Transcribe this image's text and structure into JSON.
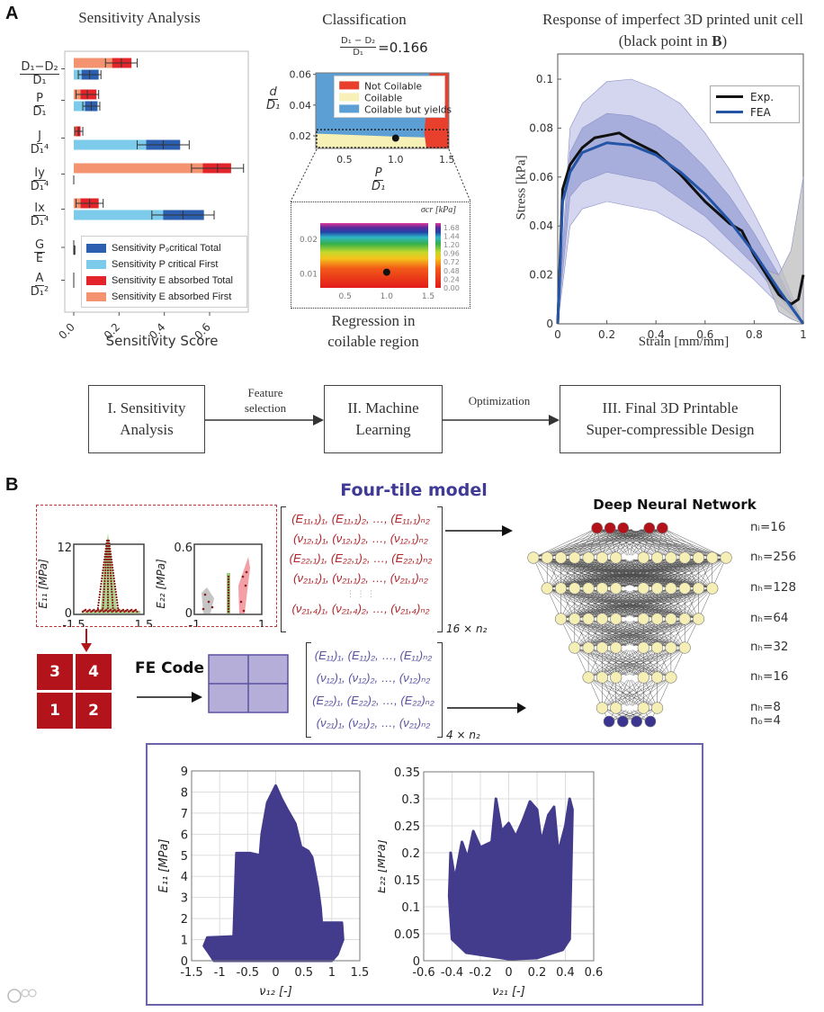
{
  "colors": {
    "p_total": "#2c5faf",
    "p_first": "#7dcbea",
    "e_total": "#e3242b",
    "e_first": "#f3936f",
    "dnn_input": "#b3121a",
    "dnn_hidden": "#f6efb5",
    "dnn_output": "#3b3591",
    "scatter": "#433b8c",
    "tile_red": "#b3141c",
    "tile_purple": "#b4aed8",
    "matrix_red": "#b0242a",
    "matrix_purple": "#5a52a0",
    "accent_title": "#3f3a96"
  },
  "panel_a": {
    "letter": "A"
  },
  "panel_b": {
    "letter": "B"
  },
  "sensitivity": {
    "title": "Sensitivity Analysis",
    "xlabel": "Sensitivity Score",
    "legend": [
      "Sensitivity P₉critical Total",
      "Sensitivity P critical First",
      "Sensitivity E absorbed Total",
      "Sensitivity E absorbed First"
    ]
  },
  "classification": {
    "title": "Classification",
    "formula_num": "D₁ − D₂",
    "formula_den": "D₁",
    "formula_value": "=0.166",
    "ylabel_num": "d",
    "ylabel_den": "D₁",
    "xlabel_num": "P",
    "xlabel_den": "D₁",
    "regression_caption_1": "Regression in",
    "regression_caption_2": "coilable region",
    "colorbar_label": "σcr [kPa]"
  },
  "response": {
    "title_1": "Response of imperfect 3D printed unit cell",
    "title_2": "(black point in ",
    "title_bold": "B",
    "title_3": ")",
    "xlabel": "Strain [mm/mm]",
    "ylabel": "Stress [kPa]",
    "legend": [
      "Exp.",
      "FEA"
    ]
  },
  "flow": {
    "box1": [
      "I. Sensitivity",
      "Analysis"
    ],
    "box2": [
      "II. Machine",
      "Learning"
    ],
    "box3": [
      "III. Final 3D Printable",
      "Super-compressible Design"
    ],
    "note1": [
      "Feature",
      "selection"
    ],
    "note2": "Optimization"
  },
  "four_tile": {
    "title": "Four-tile model",
    "fe_code": "FE Code",
    "tiles": [
      "3",
      "4",
      "1",
      "2"
    ],
    "red_matrix": [
      "(E₁₁,₁)₁, (E₁₁,₁)₂, …, (E₁₁,₁)ₙ₂",
      "(ν₁₂,₁)₁, (ν₁₂,₁)₂, …, (ν₁₂,₁)ₙ₂",
      "(E₂₂,₁)₁, (E₂₂,₁)₂, …, (E₂₂,₁)ₙ₂",
      "(ν₂₁,₁)₁, (ν₂₁,₁)₂, …, (ν₂₁,₁)ₙ₂",
      "⋮            ⋮                  ⋮",
      "(ν₂₁,₄)₁, (ν₂₁,₄)₂, …, (ν₂₁,₄)ₙ₂"
    ],
    "red_size": "16 × n₂",
    "purple_matrix": [
      "(E₁₁)₁, (E₁₁)₂, …, (E₁₁)ₙ₂",
      "(ν₁₂)₁, (ν₁₂)₂, …, (ν₁₂)ₙ₂",
      "(E₂₂)₁, (E₂₂)₂, …, (E₂₂)ₙ₂",
      "(ν₂₁)₁, (ν₂₁)₂, …, (ν₂₁)ₙ₂"
    ],
    "purple_size": "4 × n₂"
  },
  "dnn": {
    "title": "Deep Neural Network",
    "layers": [
      {
        "label": "nᵢ=16",
        "nodes": 6,
        "kind": "input"
      },
      {
        "label": "nₕ=256",
        "nodes": 15,
        "kind": "hidden"
      },
      {
        "label": "nₕ=128",
        "nodes": 13,
        "kind": "hidden"
      },
      {
        "label": "nₕ=64",
        "nodes": 11,
        "kind": "hidden"
      },
      {
        "label": "nₕ=32",
        "nodes": 9,
        "kind": "hidden"
      },
      {
        "label": "nₕ=16",
        "nodes": 7,
        "kind": "hidden"
      },
      {
        "label": "nₕ=8",
        "nodes": 5,
        "kind": "hidden"
      },
      {
        "label": "nₒ=4",
        "nodes": 4,
        "kind": "output"
      }
    ]
  },
  "chart_data": [
    {
      "id": "sensitivity",
      "type": "bar",
      "orientation": "horizontal",
      "title": "Sensitivity Analysis",
      "xlabel": "Sensitivity Score",
      "xlim": [
        -0.03,
        0.78
      ],
      "xticks": [
        "0.0",
        "0.2",
        "0.4",
        "0.6"
      ],
      "xtick_values": [
        0,
        0.2,
        0.4,
        0.6
      ],
      "categories": [
        {
          "num": "D₁−D₂",
          "den": "D₁"
        },
        {
          "num": "P",
          "den": "D₁"
        },
        {
          "num": "J",
          "den": "D₁⁴"
        },
        {
          "num": "Iy",
          "den": "D₁⁴"
        },
        {
          "num": "Ix",
          "den": "D₁⁴"
        },
        {
          "num": "G",
          "den": "E"
        },
        {
          "num": "A",
          "den": "D₁²"
        }
      ],
      "series": [
        {
          "name": "Sensitivity E absorbed First",
          "values": [
            0.17,
            0.03,
            0.01,
            0.57,
            0.03,
            0,
            0
          ]
        },
        {
          "name": "Sensitivity E absorbed Total",
          "values": [
            0.255,
            0.1,
            0.03,
            0.695,
            0.11,
            0,
            0
          ],
          "ci": [
            [
              0.14,
              0.28
            ],
            [
              0.01,
              0.11
            ],
            [
              0.005,
              0.04
            ],
            [
              0.52,
              0.75
            ],
            [
              0.01,
              0.13
            ],
            [
              0,
              0
            ],
            [
              0,
              0
            ]
          ]
        },
        {
          "name": "Sensitivity P critical First",
          "values": [
            0.035,
            0.05,
            0.32,
            0,
            0.395,
            0,
            0
          ]
        },
        {
          "name": "Sensitivity P critical Total",
          "values": [
            0.11,
            0.105,
            0.47,
            0,
            0.575,
            0.005,
            0
          ],
          "ci": [
            [
              0.02,
              0.12
            ],
            [
              0.04,
              0.115
            ],
            [
              0.28,
              0.51
            ],
            [
              0,
              0
            ],
            [
              0.345,
              0.62
            ],
            [
              0,
              0.005
            ],
            [
              0,
              0
            ]
          ]
        }
      ],
      "legend": "lower-right"
    },
    {
      "id": "classification",
      "type": "area",
      "xlim": [
        0.22,
        1.52
      ],
      "ylim": [
        0.0118,
        0.061
      ],
      "xticks": [
        "0.5",
        "1.0",
        "1.5"
      ],
      "xtick_values": [
        0.5,
        1.0,
        1.5
      ],
      "yticks": [
        "0.02",
        "0.04",
        "0.06"
      ],
      "ytick_values": [
        0.02,
        0.04,
        0.06
      ],
      "legend": [
        "Not Coilable",
        "Coilable",
        "Coilable but yields"
      ],
      "region_colors": [
        "#e8402c",
        "#f7f1b8",
        "#5b9fd4"
      ],
      "point": [
        1.0,
        0.0185
      ]
    },
    {
      "id": "regression",
      "type": "heatmap",
      "xlim": [
        0.2,
        1.5
      ],
      "ylim": [
        0.006,
        0.0246
      ],
      "xticks": [
        "0.5",
        "1.0",
        "1.5"
      ],
      "xtick_values": [
        0.5,
        1.0,
        1.5
      ],
      "yticks": [
        "0.01",
        "0.02"
      ],
      "ytick_values": [
        0.01,
        0.02
      ],
      "colorbar_ticks": [
        "0.00",
        "0.24",
        "0.48",
        "0.72",
        "0.96",
        "1.20",
        "1.44",
        "1.68"
      ],
      "colorbar_range": [
        0,
        1.8
      ],
      "point": [
        1.0,
        0.0105
      ]
    },
    {
      "id": "response",
      "type": "line",
      "xlabel": "Strain [mm/mm]",
      "ylabel": "Stress [kPa]",
      "xlim": [
        0,
        1
      ],
      "ylim": [
        0,
        0.11
      ],
      "xticks": [
        "0",
        "0.2",
        "0.4",
        "0.6",
        "0.8",
        "1"
      ],
      "xtick_values": [
        0,
        0.2,
        0.4,
        0.6,
        0.8,
        1
      ],
      "yticks": [
        "0",
        "0.02",
        "0.04",
        "0.06",
        "0.08",
        "0.1"
      ],
      "ytick_values": [
        0,
        0.02,
        0.04,
        0.06,
        0.08,
        0.1
      ],
      "series": [
        {
          "name": "Exp.",
          "color": "#111111",
          "x": [
            0,
            0.02,
            0.05,
            0.1,
            0.15,
            0.2,
            0.25,
            0.3,
            0.4,
            0.5,
            0.6,
            0.7,
            0.75,
            0.8,
            0.85,
            0.9,
            0.95,
            0.98,
            1.0
          ],
          "y": [
            0,
            0.055,
            0.065,
            0.072,
            0.076,
            0.077,
            0.078,
            0.075,
            0.07,
            0.061,
            0.05,
            0.041,
            0.038,
            0.028,
            0.02,
            0.012,
            0.008,
            0.01,
            0.02
          ]
        },
        {
          "name": "FEA",
          "color": "#2454a6",
          "x": [
            0,
            0.02,
            0.05,
            0.1,
            0.2,
            0.3,
            0.4,
            0.5,
            0.6,
            0.7,
            0.8,
            0.9,
            1.0
          ],
          "y": [
            0,
            0.05,
            0.062,
            0.07,
            0.074,
            0.073,
            0.069,
            0.062,
            0.053,
            0.042,
            0.029,
            0.014,
            0
          ]
        }
      ],
      "bands": [
        {
          "name": "FEA outer",
          "upper_x": [
            0,
            0.05,
            0.1,
            0.2,
            0.3,
            0.4,
            0.5,
            0.6,
            0.7,
            0.8,
            0.9,
            1.0
          ],
          "upper_y": [
            0,
            0.08,
            0.09,
            0.099,
            0.1,
            0.096,
            0.09,
            0.078,
            0.063,
            0.045,
            0.025,
            0
          ],
          "lower_x": [
            0,
            0.05,
            0.1,
            0.2,
            0.4,
            0.6,
            0.8,
            0.9,
            1.0
          ],
          "lower_y": [
            0,
            0.04,
            0.047,
            0.05,
            0.046,
            0.035,
            0.018,
            0.008,
            0
          ]
        },
        {
          "name": "FEA inner",
          "upper_x": [
            0,
            0.05,
            0.1,
            0.2,
            0.3,
            0.4,
            0.5,
            0.6,
            0.7,
            0.8,
            0.9,
            1.0
          ],
          "upper_y": [
            0,
            0.07,
            0.08,
            0.086,
            0.085,
            0.081,
            0.074,
            0.064,
            0.052,
            0.037,
            0.02,
            0
          ],
          "lower_x": [
            0,
            0.05,
            0.1,
            0.2,
            0.4,
            0.6,
            0.8,
            0.9,
            1.0
          ],
          "lower_y": [
            0,
            0.052,
            0.058,
            0.062,
            0.058,
            0.044,
            0.024,
            0.011,
            0
          ]
        },
        {
          "name": "Exp. spread",
          "upper_x": [
            0.85,
            0.9,
            0.95,
            1.0
          ],
          "upper_y": [
            0.022,
            0.02,
            0.03,
            0.06
          ],
          "lower_x": [
            0.85,
            0.9,
            0.95,
            1.0
          ],
          "lower_y": [
            0.018,
            0.005,
            0.002,
            0
          ]
        }
      ],
      "legend": "top-right"
    },
    {
      "id": "tile_e11",
      "type": "scatter",
      "xlabel": "ν₁₂ [-]",
      "ylabel": "E₁₁ [MPa]",
      "xlim": [
        -1.5,
        1.5
      ],
      "ylim": [
        0,
        12
      ],
      "xticks": [
        "-1.5",
        "1.5"
      ],
      "yticks": [
        "0",
        "12"
      ]
    },
    {
      "id": "tile_e22",
      "type": "scatter",
      "xlabel": "ν₂₁ [-]",
      "ylabel": "E₂₂ [MPa]",
      "xlim": [
        -1,
        1
      ],
      "ylim": [
        0,
        0.6
      ],
      "xticks": [
        "-1",
        "1"
      ],
      "yticks": [
        "0",
        "0.6"
      ]
    },
    {
      "id": "dataset_e11",
      "type": "scatter",
      "xlabel": "ν₁₂ [-]",
      "ylabel": "E₁₁ [MPa]",
      "xlim": [
        -1.5,
        1.5
      ],
      "ylim": [
        0,
        9
      ],
      "xticks": [
        "-1.5",
        "-1",
        "-0.5",
        "0",
        "0.5",
        "1",
        "1.5"
      ],
      "xtick_values": [
        -1.5,
        -1,
        -0.5,
        0,
        0.5,
        1,
        1.5
      ],
      "yticks": [
        "0",
        "1",
        "2",
        "3",
        "4",
        "5",
        "6",
        "7",
        "8",
        "9"
      ],
      "ytick_values": [
        0,
        1,
        2,
        3,
        4,
        5,
        6,
        7,
        8,
        9
      ],
      "envelope_x": [
        -1.28,
        -1.22,
        -0.75,
        -0.7,
        -0.45,
        -0.28,
        -0.25,
        -0.15,
        0,
        0.1,
        0.2,
        0.35,
        0.45,
        0.58,
        0.65,
        0.75,
        0.8,
        0.82,
        1.18,
        1.2,
        1.1,
        1.0,
        -1.1,
        -1.2
      ],
      "envelope_y": [
        0.7,
        1.1,
        1.15,
        5.1,
        5.1,
        5.0,
        6.0,
        7.5,
        8.3,
        7.7,
        7.2,
        6.5,
        5.4,
        5.2,
        4.9,
        3.5,
        2.5,
        1.8,
        1.8,
        1.0,
        0.3,
        0,
        0,
        0.4
      ]
    },
    {
      "id": "dataset_e22",
      "type": "scatter",
      "xlabel": "ν₂₁ [-]",
      "ylabel": "E₂₂ [MPa]",
      "xlim": [
        -0.6,
        0.6
      ],
      "ylim": [
        0,
        0.35
      ],
      "xticks": [
        "-0.6",
        "-0.4",
        "-0.2",
        "0",
        "0.2",
        "0.4",
        "0.6"
      ],
      "xtick_values": [
        -0.6,
        -0.4,
        -0.2,
        0,
        0.2,
        0.4,
        0.6
      ],
      "yticks": [
        "0",
        "0.05",
        "0.1",
        "0.15",
        "0.2",
        "0.25",
        "0.3",
        "0.35"
      ],
      "ytick_values": [
        0,
        0.05,
        0.1,
        0.15,
        0.2,
        0.25,
        0.3,
        0.35
      ],
      "envelope_x": [
        -0.42,
        -0.41,
        -0.38,
        -0.33,
        -0.29,
        -0.25,
        -0.2,
        -0.12,
        -0.09,
        -0.05,
        0,
        0.05,
        0.1,
        0.15,
        0.2,
        0.23,
        0.28,
        0.32,
        0.35,
        0.4,
        0.43,
        0.45,
        0.43,
        0.38,
        0.2,
        0,
        -0.3,
        -0.4
      ],
      "envelope_y": [
        0.12,
        0.2,
        0.15,
        0.22,
        0.19,
        0.24,
        0.21,
        0.22,
        0.3,
        0.24,
        0.255,
        0.23,
        0.26,
        0.295,
        0.28,
        0.22,
        0.27,
        0.285,
        0.2,
        0.25,
        0.3,
        0.28,
        0.04,
        0.02,
        0.005,
        0.003,
        0.015,
        0.04
      ]
    }
  ]
}
